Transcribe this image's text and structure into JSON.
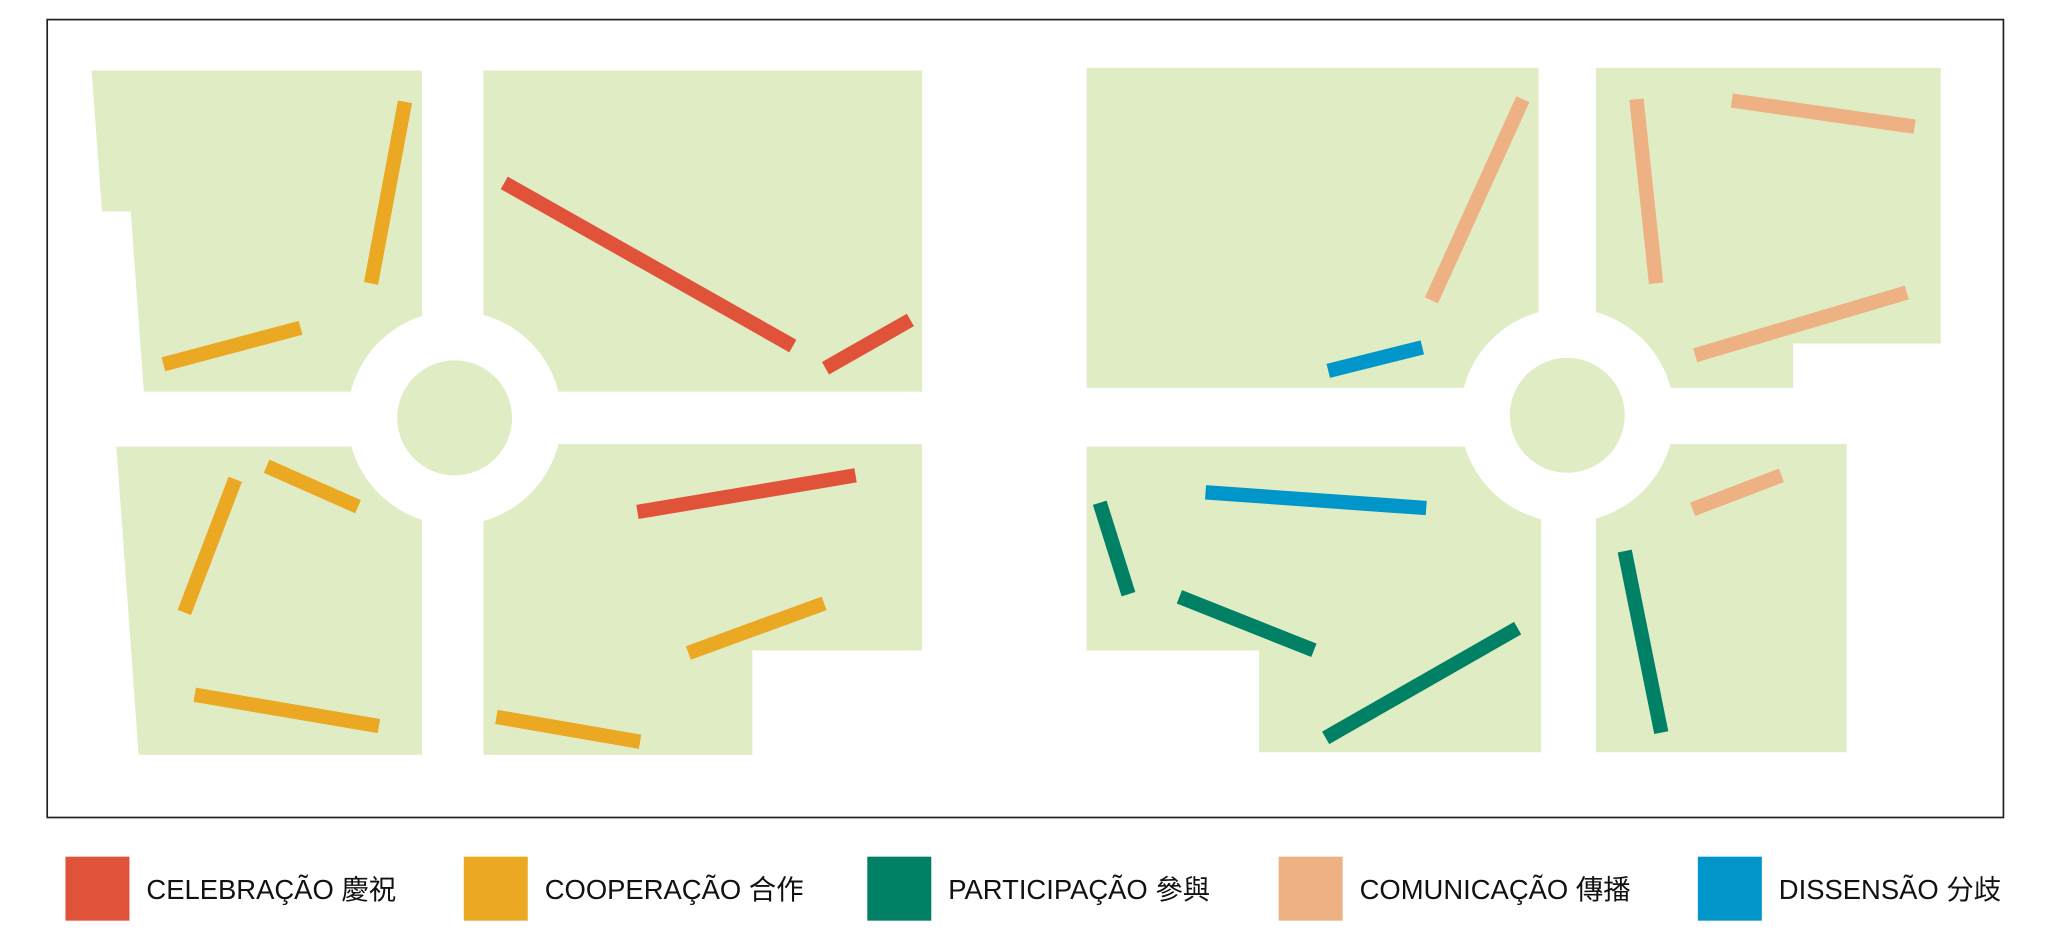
{
  "legend": [
    {
      "label": "CELEBRAÇÃO 慶祝",
      "color": "#e0533a"
    },
    {
      "label": "COOPERAÇÃO 合作",
      "color": "#eba823"
    },
    {
      "label": "PARTICIPAÇÃO 參與",
      "color": "#008165"
    },
    {
      "label": "COMUNICAÇÃO 傳播",
      "color": "#edb183"
    },
    {
      "label": "DISSENSÃO 分歧",
      "color": "#0096c9"
    }
  ]
}
